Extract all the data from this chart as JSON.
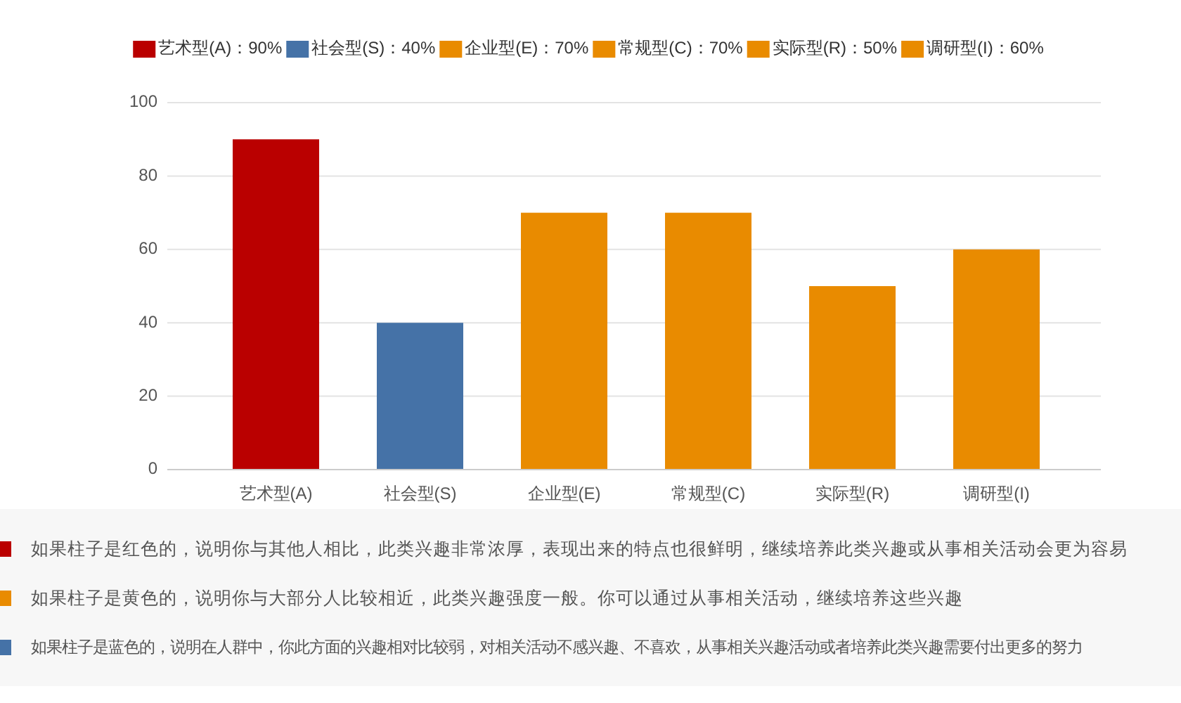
{
  "chart_data": {
    "type": "bar",
    "categories": [
      "艺术型(A)",
      "社会型(S)",
      "企业型(E)",
      "常规型(C)",
      "实际型(R)",
      "调研型(I)"
    ],
    "series": [
      {
        "name": "艺术型(A)：90%",
        "color": "#ba0000",
        "values": [
          90,
          null,
          null,
          null,
          null,
          null
        ]
      },
      {
        "name": "社会型(S)：40%",
        "color": "#4572a7",
        "values": [
          null,
          40,
          null,
          null,
          null,
          null
        ]
      },
      {
        "name": "企业型(E)：70%",
        "color": "#e98b00",
        "values": [
          null,
          null,
          70,
          null,
          null,
          null
        ]
      },
      {
        "name": "常规型(C)：70%",
        "color": "#e98b00",
        "values": [
          null,
          null,
          null,
          70,
          null,
          null
        ]
      },
      {
        "name": "实际型(R)：50%",
        "color": "#e98b00",
        "values": [
          null,
          null,
          null,
          null,
          50,
          null
        ]
      },
      {
        "name": "调研型(I)：60%",
        "color": "#e98b00",
        "values": [
          null,
          null,
          null,
          null,
          null,
          60
        ]
      }
    ],
    "stacked": true,
    "ylim": [
      0,
      100
    ],
    "yticks": [
      0,
      20,
      40,
      60,
      80,
      100
    ],
    "grid": "y",
    "legend": "top",
    "annotations": [
      "如果柱子是红色的，说明你与其他人相比，此类兴趣非常浓厚，表现出来的特点也很鲜明，继续培养此类兴趣或从事相关活动会更为容易",
      "如果柱子是黄色的，说明你与大部分人比较相近，此类兴趣强度一般。你可以通过从事相关活动，继续培养这些兴趣",
      "如果柱子是蓝色的，说明在人群中，你此方面的兴趣相对比较弱，对相关活动不感兴趣、不喜欢，从事相关兴趣活动或者培养此类兴趣需要付出更多的努力"
    ]
  }
}
